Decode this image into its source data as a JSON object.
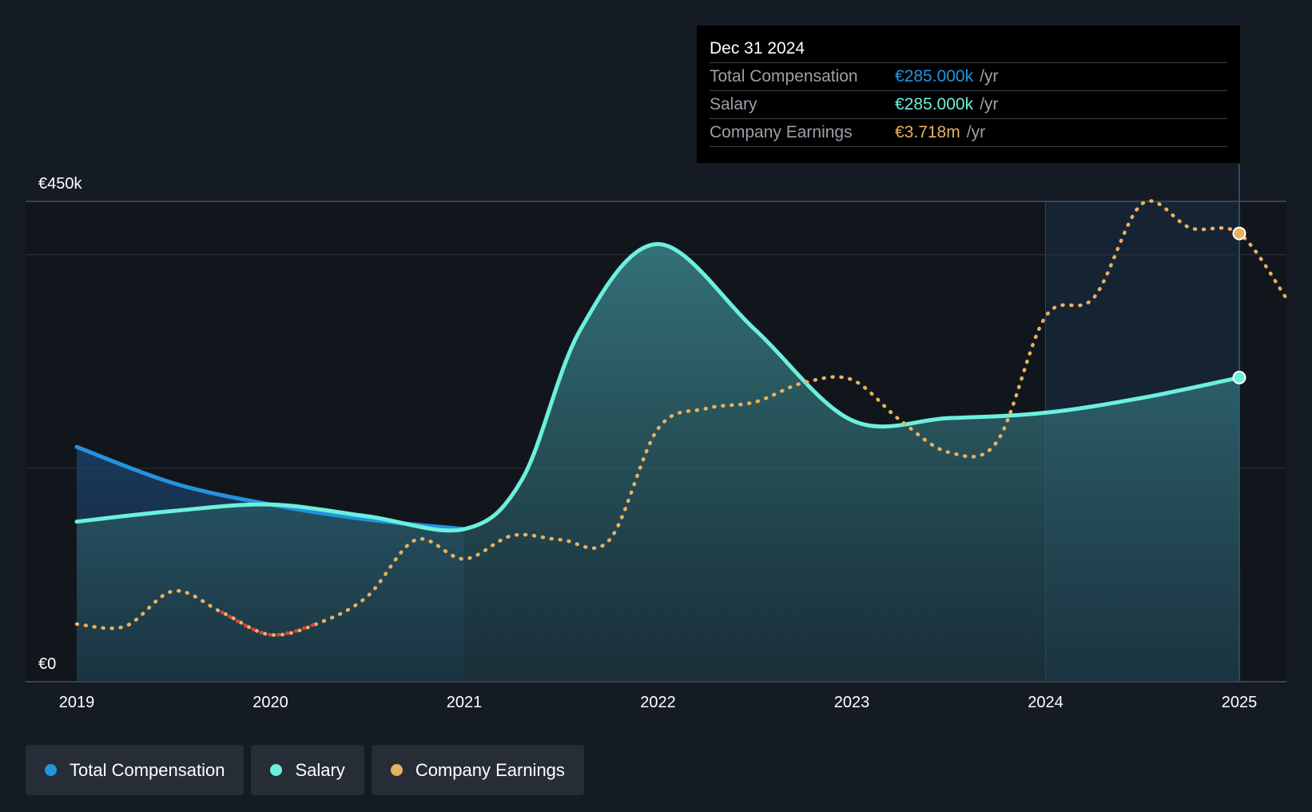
{
  "colors": {
    "background": "#151b24",
    "total_compensation": "#2394df",
    "salary": "#6cf0dd",
    "company_earnings": "#e8b15f",
    "negative_earnings": "#e0403b",
    "tooltip_bg": "#000000"
  },
  "tooltip": {
    "date": "Dec 31 2024",
    "rows": [
      {
        "label": "Total Compensation",
        "value": "€285.000k",
        "unit": "/yr",
        "color": "#2394df"
      },
      {
        "label": "Salary",
        "value": "€285.000k",
        "unit": "/yr",
        "color": "#6cf0dd"
      },
      {
        "label": "Company Earnings",
        "value": "€3.718m",
        "unit": "/yr",
        "color": "#e8b15f"
      }
    ]
  },
  "legend": [
    {
      "label": "Total Compensation",
      "color": "#2394df"
    },
    {
      "label": "Salary",
      "color": "#6cf0dd"
    },
    {
      "label": "Company Earnings",
      "color": "#e8b15f"
    }
  ],
  "chart_data": {
    "type": "line",
    "y_label_top": "€450k",
    "y_label_bottom": "€0",
    "ylim": [
      0,
      450
    ],
    "xlim": [
      2019,
      2025.24
    ],
    "x_ticks": [
      "2019",
      "2020",
      "2021",
      "2022",
      "2023",
      "2024",
      "2025"
    ],
    "forecast_region_start": 2024,
    "grid": true,
    "legend_position": "bottom-left",
    "series": [
      {
        "name": "Total Compensation",
        "unit": "€k",
        "points": [
          [
            2019,
            220
          ],
          [
            2019.5,
            186
          ],
          [
            2020,
            166
          ],
          [
            2020.5,
            152
          ],
          [
            2021,
            143
          ]
        ]
      },
      {
        "name": "Salary",
        "unit": "€k",
        "points": [
          [
            2019,
            150
          ],
          [
            2019.5,
            160
          ],
          [
            2020,
            166
          ],
          [
            2020.5,
            155
          ],
          [
            2021,
            143
          ],
          [
            2021.3,
            190
          ],
          [
            2021.6,
            330
          ],
          [
            2022,
            410
          ],
          [
            2022.5,
            330
          ],
          [
            2023,
            245
          ],
          [
            2023.5,
            247
          ],
          [
            2024,
            252
          ],
          [
            2024.5,
            266
          ],
          [
            2025,
            285
          ]
        ]
      },
      {
        "name": "Company Earnings",
        "unit": "€k scaled",
        "points": [
          [
            2019,
            54
          ],
          [
            2019.25,
            52
          ],
          [
            2019.5,
            85
          ],
          [
            2019.75,
            65
          ],
          [
            2020,
            44
          ],
          [
            2020.25,
            55
          ],
          [
            2020.5,
            80
          ],
          [
            2020.75,
            133
          ],
          [
            2021,
            115
          ],
          [
            2021.25,
            137
          ],
          [
            2021.5,
            133
          ],
          [
            2021.75,
            133
          ],
          [
            2022,
            237
          ],
          [
            2022.25,
            256
          ],
          [
            2022.5,
            262
          ],
          [
            2022.75,
            280
          ],
          [
            2023,
            283
          ],
          [
            2023.25,
            245
          ],
          [
            2023.5,
            215
          ],
          [
            2023.75,
            225
          ],
          [
            2024,
            342
          ],
          [
            2024.25,
            360
          ],
          [
            2024.5,
            448
          ],
          [
            2024.75,
            425
          ],
          [
            2025,
            420
          ],
          [
            2025.24,
            360
          ]
        ]
      }
    ]
  }
}
